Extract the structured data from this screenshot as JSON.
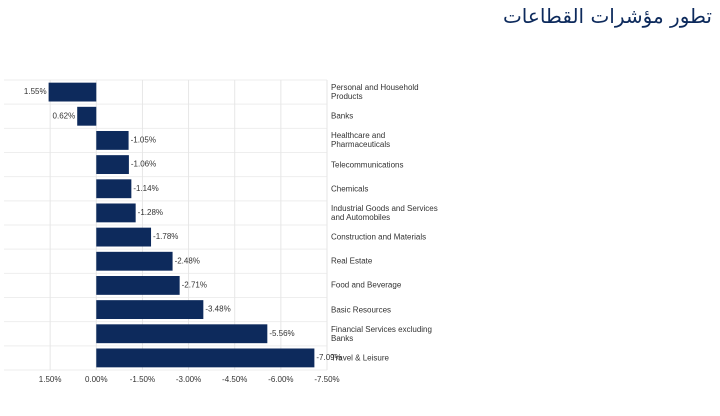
{
  "chart_data": {
    "type": "barh",
    "title": "تطور مؤشرات القطاعات",
    "categories": [
      "Personal and Household Products",
      "Banks",
      "Healthcare and Pharmaceuticals",
      "Telecommunications",
      "Chemicals",
      "Industrial Goods and Services and Automobiles",
      "Construction and Materials",
      "Real Estate",
      "Food and Beverage",
      "Basic Resources",
      "Financial Services excluding Banks",
      "Travel & Leisure"
    ],
    "values": [
      1.55,
      0.62,
      -1.05,
      -1.06,
      -1.14,
      -1.28,
      -1.78,
      -2.48,
      -2.71,
      -3.48,
      -5.56,
      -7.09
    ],
    "value_labels": [
      "1.55%",
      "0.62%",
      "-1.05%",
      "-1.06%",
      "-1.14%",
      "-1.28%",
      "-1.78%",
      "-2.48%",
      "-2.71%",
      "-3.48%",
      "-5.56%",
      "-7.09%"
    ],
    "color": "#0d2a5c",
    "xlim": [
      3,
      -7.5
    ],
    "xticks": [
      {
        "value": 1.5,
        "label": "1.50%"
      },
      {
        "value": 0,
        "label": "0.00%"
      },
      {
        "value": -1.5,
        "label": "-1.50%"
      },
      {
        "value": -3,
        "label": "-3.00%"
      },
      {
        "value": -4.5,
        "label": "-4.50%"
      },
      {
        "value": -6,
        "label": "-6.00%"
      },
      {
        "value": -7.5,
        "label": "-7.50%"
      }
    ],
    "grid": true
  }
}
